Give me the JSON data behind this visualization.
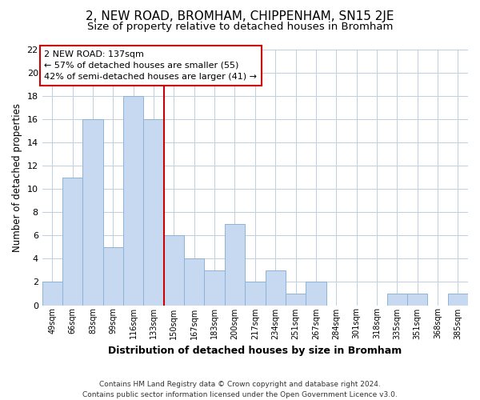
{
  "title": "2, NEW ROAD, BROMHAM, CHIPPENHAM, SN15 2JE",
  "subtitle": "Size of property relative to detached houses in Bromham",
  "xlabel": "Distribution of detached houses by size in Bromham",
  "ylabel": "Number of detached properties",
  "bar_labels": [
    "49sqm",
    "66sqm",
    "83sqm",
    "99sqm",
    "116sqm",
    "133sqm",
    "150sqm",
    "167sqm",
    "183sqm",
    "200sqm",
    "217sqm",
    "234sqm",
    "251sqm",
    "267sqm",
    "284sqm",
    "301sqm",
    "318sqm",
    "335sqm",
    "351sqm",
    "368sqm",
    "385sqm"
  ],
  "bar_values": [
    2,
    11,
    16,
    5,
    18,
    16,
    6,
    4,
    3,
    7,
    2,
    3,
    1,
    2,
    0,
    0,
    0,
    1,
    1,
    0,
    1
  ],
  "bar_color": "#c6d9f0",
  "bar_edge_color": "#8cb4d5",
  "highlight_index": 5,
  "highlight_line_color": "#cc0000",
  "ylim": [
    0,
    22
  ],
  "yticks": [
    0,
    2,
    4,
    6,
    8,
    10,
    12,
    14,
    16,
    18,
    20,
    22
  ],
  "annotation_title": "2 NEW ROAD: 137sqm",
  "annotation_line1": "← 57% of detached houses are smaller (55)",
  "annotation_line2": "42% of semi-detached houses are larger (41) →",
  "annotation_box_color": "#ffffff",
  "annotation_box_edge": "#cc0000",
  "footer_line1": "Contains HM Land Registry data © Crown copyright and database right 2024.",
  "footer_line2": "Contains public sector information licensed under the Open Government Licence v3.0.",
  "background_color": "#ffffff",
  "grid_color": "#c0cfe0",
  "title_fontsize": 11,
  "subtitle_fontsize": 9.5
}
